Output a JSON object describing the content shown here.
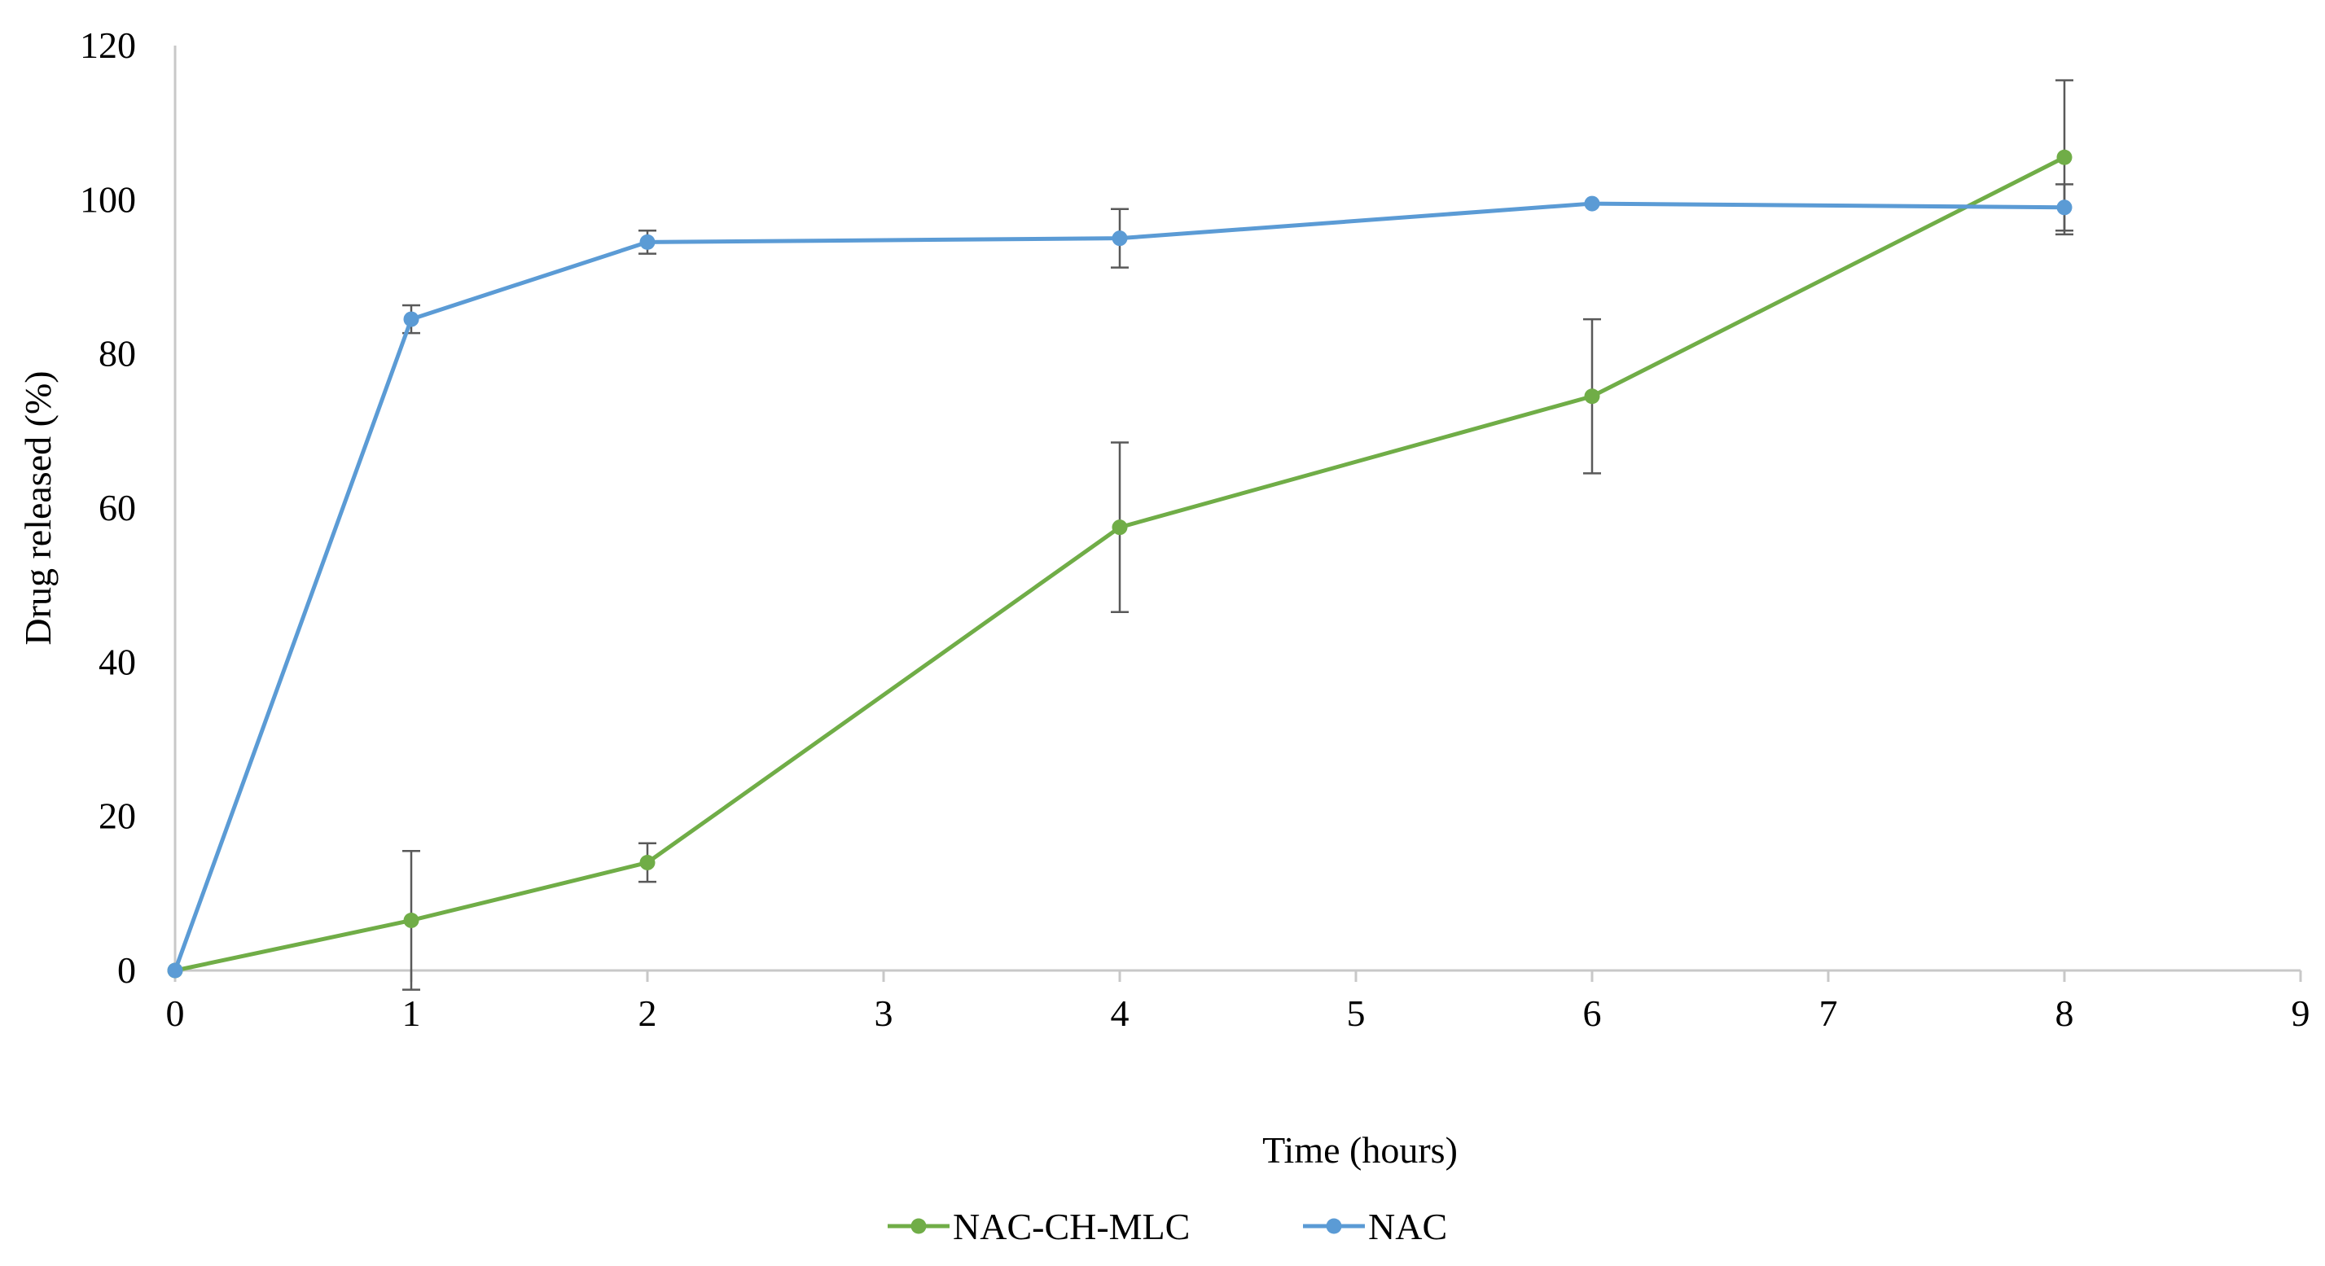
{
  "chart_data": {
    "type": "line",
    "title": "",
    "xlabel": "Time (hours)",
    "ylabel": "Drug released (%)",
    "xlim": [
      0,
      9
    ],
    "ylim": [
      0,
      120
    ],
    "x_ticks": [
      0,
      1,
      2,
      3,
      4,
      5,
      6,
      7,
      8,
      9
    ],
    "y_ticks": [
      0,
      20,
      40,
      60,
      80,
      100,
      120
    ],
    "grid": false,
    "legend_position": "bottom-center",
    "series": [
      {
        "name": "NAC-CH-MLC",
        "color": "#70ad47",
        "x": [
          0,
          1,
          2,
          4,
          6,
          8
        ],
        "y": [
          0,
          6.5,
          14,
          57.5,
          74.5,
          105.5
        ],
        "error": [
          0,
          9,
          2.5,
          11,
          10,
          10
        ]
      },
      {
        "name": "NAC",
        "color": "#5b9bd5",
        "x": [
          0,
          1,
          2,
          4,
          6,
          8
        ],
        "y": [
          0,
          84.5,
          94.5,
          95,
          99.5,
          99
        ],
        "error": [
          0,
          1.8,
          1.5,
          3.8,
          0,
          3
        ]
      }
    ],
    "colors": {
      "axis": "#c8c8c8",
      "error_bar": "#595959",
      "text": "#000000"
    }
  }
}
